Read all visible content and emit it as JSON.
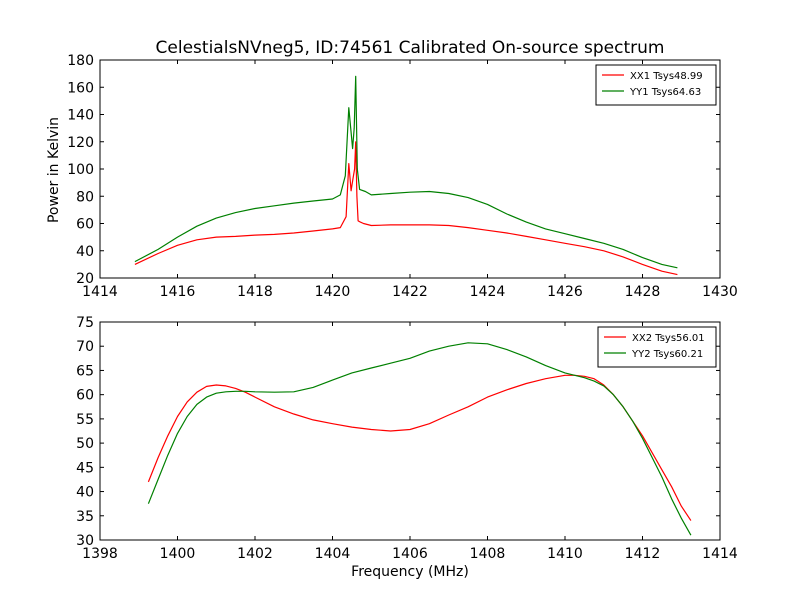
{
  "title": "CelestialsNVneg5, ID:74561 Calibrated On-source spectrum",
  "colors": {
    "red": "#ff0000",
    "green": "#008000"
  },
  "chart_data": [
    {
      "type": "line",
      "xlim": [
        1414,
        1430
      ],
      "ylim": [
        20,
        180
      ],
      "xticks": [
        "1414",
        "1416",
        "1418",
        "1420",
        "1422",
        "1424",
        "1426",
        "1428",
        "1430"
      ],
      "yticks": [
        "20",
        "40",
        "60",
        "80",
        "100",
        "120",
        "140",
        "160",
        "180"
      ],
      "xlabel": "",
      "ylabel": "Power in Kelvin",
      "legend_position": "top-right",
      "grid": false,
      "series": [
        {
          "name": "XX1 Tsys48.99",
          "color": "#ff0000",
          "x": [
            1414.9,
            1415.5,
            1416,
            1416.5,
            1417,
            1417.5,
            1418,
            1418.5,
            1419,
            1419.5,
            1420,
            1420.2,
            1420.35,
            1420.42,
            1420.48,
            1420.53,
            1420.57,
            1420.6,
            1420.63,
            1420.66,
            1420.72,
            1420.8,
            1421,
            1421.5,
            1422,
            1422.5,
            1423,
            1423.5,
            1424,
            1424.5,
            1425,
            1425.5,
            1426,
            1426.5,
            1427,
            1427.5,
            1428,
            1428.5,
            1428.9
          ],
          "y": [
            30,
            38,
            44,
            48,
            50,
            50.5,
            51.5,
            52,
            53,
            54.5,
            56,
            57,
            65,
            104,
            84,
            93,
            100,
            120,
            80,
            62,
            61,
            60,
            58.5,
            59,
            59,
            59,
            58.5,
            57,
            55,
            53,
            50.5,
            48,
            45.5,
            43,
            40,
            35.5,
            30,
            25,
            22.5
          ]
        },
        {
          "name": "YY1 Tsys64.63",
          "color": "#008000",
          "x": [
            1414.9,
            1415.5,
            1416,
            1416.5,
            1417,
            1417.5,
            1418,
            1418.5,
            1419,
            1419.5,
            1420,
            1420.2,
            1420.33,
            1420.42,
            1420.47,
            1420.52,
            1420.56,
            1420.6,
            1420.64,
            1420.7,
            1420.85,
            1421,
            1421.5,
            1422,
            1422.5,
            1423,
            1423.5,
            1424,
            1424.5,
            1425,
            1425.5,
            1426,
            1426.5,
            1427,
            1427.5,
            1428,
            1428.5,
            1428.9
          ],
          "y": [
            32,
            41,
            50,
            58,
            64,
            68,
            71,
            73,
            75,
            76.5,
            78,
            81,
            95,
            145,
            130,
            115,
            130,
            168,
            100,
            85,
            83.5,
            81,
            82,
            83,
            83.5,
            82,
            79,
            74,
            67,
            61,
            56,
            52.5,
            49,
            45.5,
            41,
            35,
            30,
            27.5
          ]
        }
      ]
    },
    {
      "type": "line",
      "xlim": [
        1398,
        1414
      ],
      "ylim": [
        30,
        75
      ],
      "xticks": [
        "1398",
        "1400",
        "1402",
        "1404",
        "1406",
        "1408",
        "1410",
        "1412",
        "1414"
      ],
      "yticks": [
        "30",
        "35",
        "40",
        "45",
        "50",
        "55",
        "60",
        "65",
        "70",
        "75"
      ],
      "xlabel": "Frequency (MHz)",
      "ylabel": "",
      "legend_position": "top-right",
      "grid": false,
      "series": [
        {
          "name": "XX2 Tsys56.01",
          "color": "#ff0000",
          "x": [
            1399.25,
            1399.5,
            1399.75,
            1400,
            1400.25,
            1400.5,
            1400.75,
            1401,
            1401.25,
            1401.5,
            1401.75,
            1402,
            1402.5,
            1403,
            1403.5,
            1404,
            1404.5,
            1405,
            1405.5,
            1406,
            1406.5,
            1407,
            1407.5,
            1408,
            1408.5,
            1409,
            1409.5,
            1410,
            1410.25,
            1410.5,
            1410.75,
            1411,
            1411.25,
            1411.5,
            1411.75,
            1412,
            1412.25,
            1412.5,
            1412.75,
            1413,
            1413.25
          ],
          "y": [
            42,
            47,
            51.5,
            55.5,
            58.5,
            60.5,
            61.7,
            62,
            61.8,
            61.3,
            60.5,
            59.5,
            57.5,
            56,
            54.8,
            54,
            53.3,
            52.8,
            52.5,
            52.8,
            54,
            55.8,
            57.5,
            59.5,
            61,
            62.3,
            63.3,
            64,
            64,
            63.8,
            63.3,
            62,
            60,
            57.5,
            54.5,
            51.5,
            48,
            44.5,
            41,
            37,
            34
          ]
        },
        {
          "name": "YY2 Tsys60.21",
          "color": "#008000",
          "x": [
            1399.25,
            1399.5,
            1399.75,
            1400,
            1400.25,
            1400.5,
            1400.75,
            1401,
            1401.25,
            1401.5,
            1401.75,
            1402,
            1402.5,
            1403,
            1403.5,
            1404,
            1404.5,
            1405,
            1405.5,
            1406,
            1406.5,
            1407,
            1407.5,
            1408,
            1408.5,
            1409,
            1409.5,
            1410,
            1410.25,
            1410.5,
            1410.75,
            1411,
            1411.25,
            1411.5,
            1411.75,
            1412,
            1412.25,
            1412.5,
            1412.75,
            1413,
            1413.25
          ],
          "y": [
            37.5,
            42.5,
            47.5,
            52,
            55.5,
            58,
            59.5,
            60.3,
            60.6,
            60.7,
            60.7,
            60.6,
            60.5,
            60.6,
            61.5,
            63,
            64.5,
            65.5,
            66.5,
            67.5,
            69,
            70,
            70.7,
            70.5,
            69.3,
            67.8,
            66,
            64.5,
            64,
            63.5,
            62.8,
            61.8,
            60,
            57.5,
            54.5,
            51,
            47,
            43,
            38.5,
            34.5,
            31
          ]
        }
      ]
    }
  ]
}
